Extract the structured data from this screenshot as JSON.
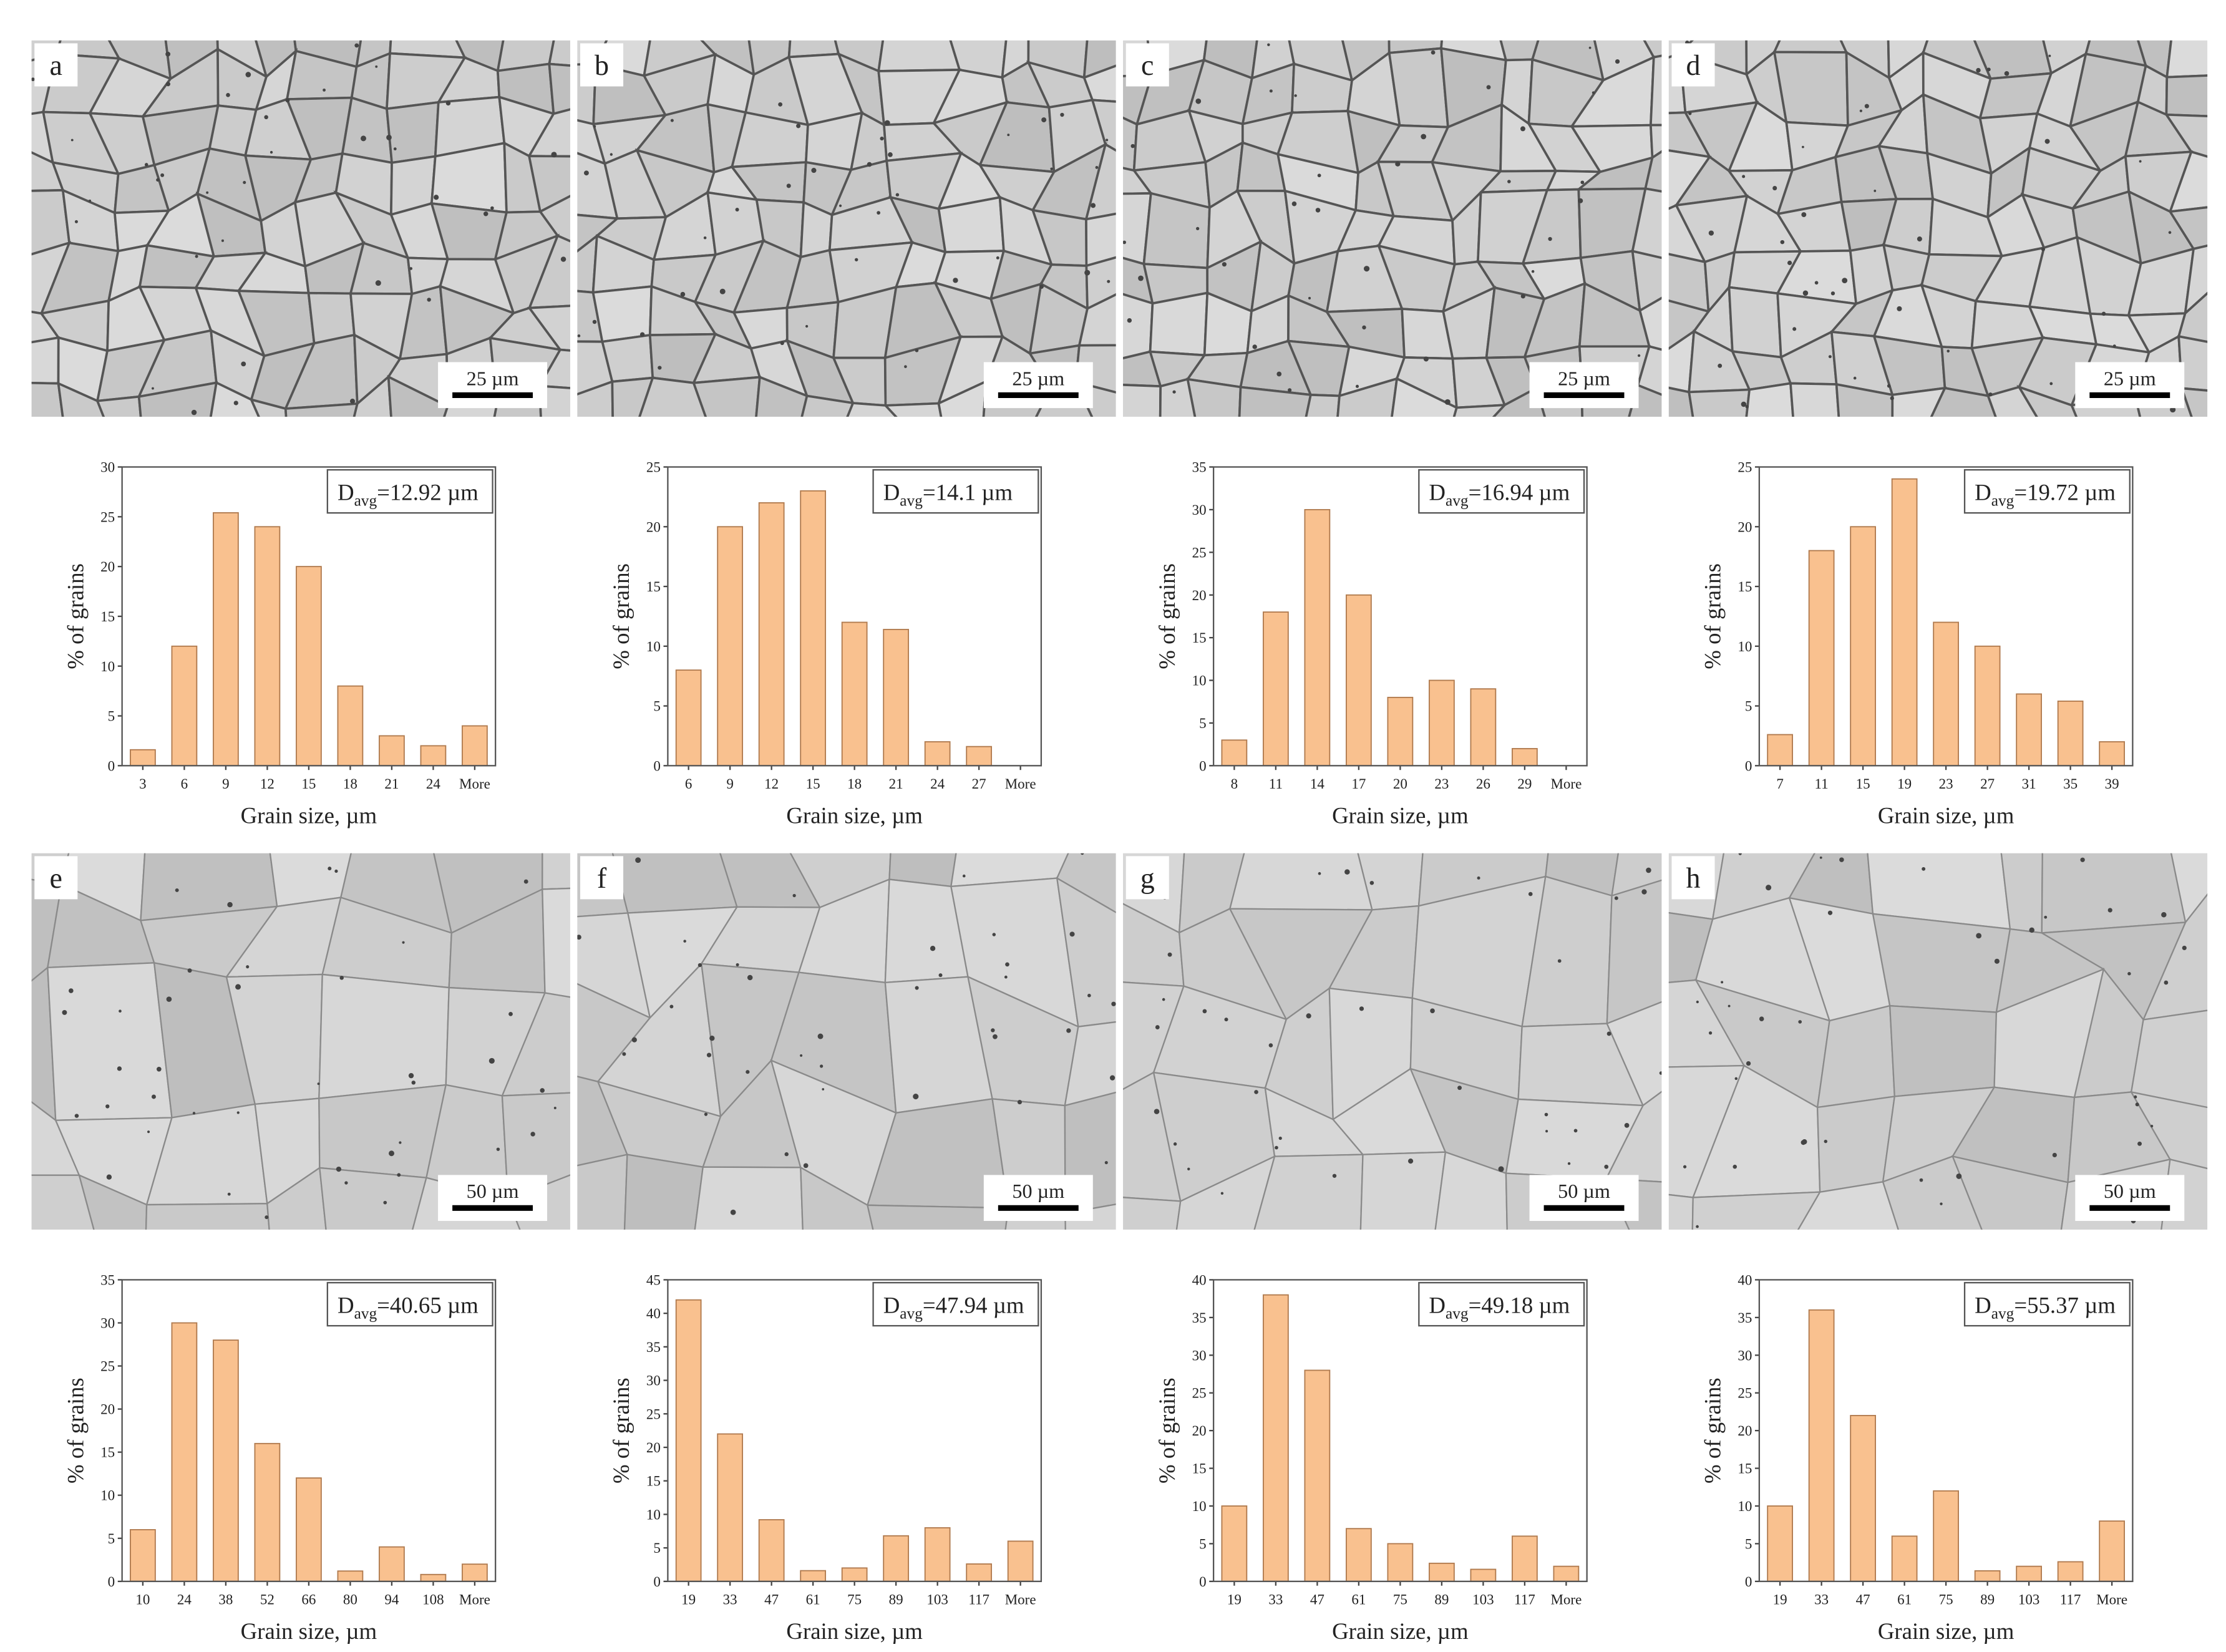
{
  "micrographs": [
    {
      "label": "a",
      "scale_bar": "25 µm"
    },
    {
      "label": "b",
      "scale_bar": "25 µm"
    },
    {
      "label": "c",
      "scale_bar": "25 µm"
    },
    {
      "label": "d",
      "scale_bar": "25 µm"
    },
    {
      "label": "e",
      "scale_bar": "50 µm"
    },
    {
      "label": "f",
      "scale_bar": "50 µm"
    },
    {
      "label": "g",
      "scale_bar": "50 µm"
    },
    {
      "label": "h",
      "scale_bar": "50 µm"
    }
  ],
  "chart_data": [
    {
      "type": "bar",
      "x_label": "Grain size, µm",
      "y_label": "% of grains",
      "color": "#f9c18f",
      "annotation": {
        "symbol": "D",
        "subscript": "avg",
        "text": "=12.92 µm"
      },
      "categories": [
        "3",
        "6",
        "9",
        "12",
        "15",
        "18",
        "21",
        "24",
        "More"
      ],
      "values": [
        1.6,
        12,
        25.4,
        24,
        20,
        8,
        3,
        2,
        4
      ],
      "ylim": [
        0,
        30
      ],
      "yticks": [
        0,
        5,
        10,
        15,
        20,
        25,
        30
      ]
    },
    {
      "type": "bar",
      "x_label": "Grain size, µm",
      "y_label": "% of grains",
      "color": "#f9c18f",
      "annotation": {
        "symbol": "D",
        "subscript": "avg",
        "text": "=14.1 µm"
      },
      "categories": [
        "6",
        "9",
        "12",
        "15",
        "18",
        "21",
        "24",
        "27",
        "More"
      ],
      "values": [
        8,
        20,
        22,
        23,
        12,
        11.4,
        2,
        1.6,
        0
      ],
      "ylim": [
        0,
        25
      ],
      "yticks": [
        0,
        5,
        10,
        15,
        20,
        25
      ]
    },
    {
      "type": "bar",
      "x_label": "Grain size, µm",
      "y_label": "% of grains",
      "color": "#f9c18f",
      "annotation": {
        "symbol": "D",
        "subscript": "avg",
        "text": "=16.94 µm"
      },
      "categories": [
        "8",
        "11",
        "14",
        "17",
        "20",
        "23",
        "26",
        "29",
        "More"
      ],
      "values": [
        3,
        18,
        30,
        20,
        8,
        10,
        9,
        2,
        0
      ],
      "ylim": [
        0,
        35
      ],
      "yticks": [
        0,
        5,
        10,
        15,
        20,
        25,
        30,
        35
      ]
    },
    {
      "type": "bar",
      "x_label": "Grain size, µm",
      "y_label": "% of grains",
      "color": "#f9c18f",
      "annotation": {
        "symbol": "D",
        "subscript": "avg",
        "text": "=19.72 µm"
      },
      "categories": [
        "7",
        "11",
        "15",
        "19",
        "23",
        "27",
        "31",
        "35",
        "39"
      ],
      "values": [
        2.6,
        18,
        20,
        24,
        12,
        10,
        6,
        5.4,
        2
      ],
      "ylim": [
        0,
        25
      ],
      "yticks": [
        0,
        5,
        10,
        15,
        20,
        25
      ]
    },
    {
      "type": "bar",
      "x_label": "Grain size, µm",
      "y_label": "% of grains",
      "color": "#f9c18f",
      "annotation": {
        "symbol": "D",
        "subscript": "avg",
        "text": "=40.65 µm"
      },
      "categories": [
        "10",
        "24",
        "38",
        "52",
        "66",
        "80",
        "94",
        "108",
        "More"
      ],
      "values": [
        6,
        30,
        28,
        16,
        12,
        1.2,
        4,
        0.8,
        2
      ],
      "ylim": [
        0,
        35
      ],
      "yticks": [
        0,
        5,
        10,
        15,
        20,
        25,
        30,
        35
      ]
    },
    {
      "type": "bar",
      "x_label": "Grain size, µm",
      "y_label": "% of grains",
      "color": "#f9c18f",
      "annotation": {
        "symbol": "D",
        "subscript": "avg",
        "text": "=47.94 µm"
      },
      "categories": [
        "19",
        "33",
        "47",
        "61",
        "75",
        "89",
        "103",
        "117",
        "More"
      ],
      "values": [
        42,
        22,
        9.2,
        1.6,
        2,
        6.8,
        8,
        2.6,
        6
      ],
      "ylim": [
        0,
        45
      ],
      "yticks": [
        0,
        5,
        10,
        15,
        20,
        25,
        30,
        35,
        40,
        45
      ]
    },
    {
      "type": "bar",
      "x_label": "Grain size, µm",
      "y_label": "% of grains",
      "color": "#f9c18f",
      "annotation": {
        "symbol": "D",
        "subscript": "avg",
        "text": "=49.18 µm"
      },
      "categories": [
        "19",
        "33",
        "47",
        "61",
        "75",
        "89",
        "103",
        "117",
        "More"
      ],
      "values": [
        10,
        38,
        28,
        7,
        5,
        2.4,
        1.6,
        6,
        2
      ],
      "ylim": [
        0,
        40
      ],
      "yticks": [
        0,
        5,
        10,
        15,
        20,
        25,
        30,
        35,
        40
      ]
    },
    {
      "type": "bar",
      "x_label": "Grain size, µm",
      "y_label": "% of grains",
      "color": "#f9c18f",
      "annotation": {
        "symbol": "D",
        "subscript": "avg",
        "text": "=55.37 µm"
      },
      "categories": [
        "19",
        "33",
        "47",
        "61",
        "75",
        "89",
        "103",
        "117",
        "More"
      ],
      "values": [
        10,
        36,
        22,
        6,
        12,
        1.4,
        2,
        2.6,
        8
      ],
      "ylim": [
        0,
        40
      ],
      "yticks": [
        0,
        5,
        10,
        15,
        20,
        25,
        30,
        35,
        40
      ]
    }
  ]
}
